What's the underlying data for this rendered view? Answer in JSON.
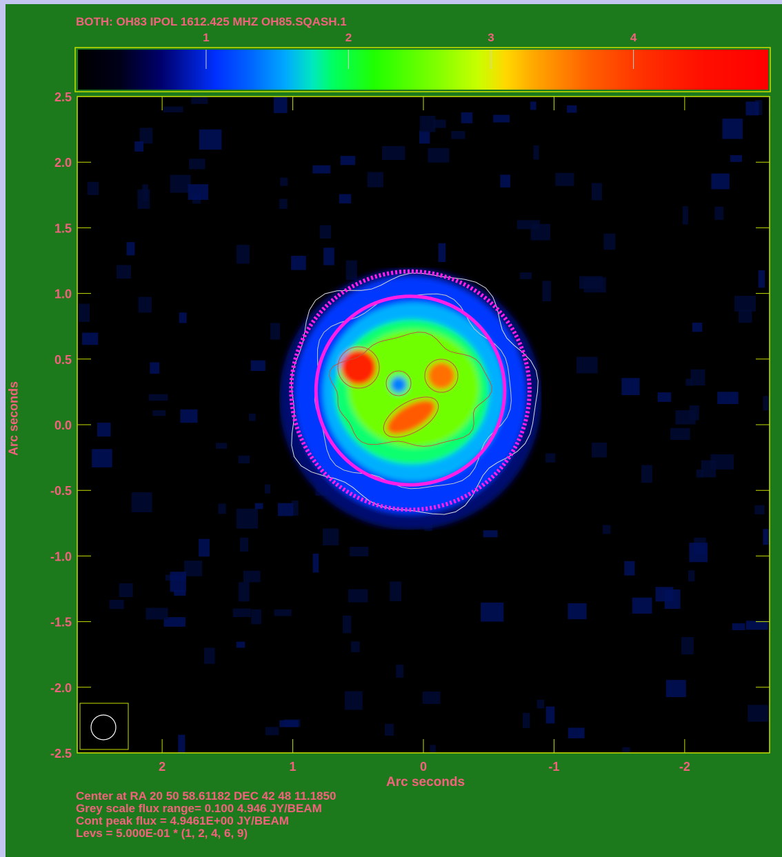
{
  "title": "BOTH: OH83  IPOL  1612.425 MHZ  OH85.SQASH.1",
  "footer": {
    "center": "Center at RA 20 50 58.61182  DEC 42 48 11.1850",
    "grey_range": "Grey scale flux range= 0.100 4.946 JY/BEAM",
    "peak": "Cont peak flux =  4.9461E+00 JY/BEAM",
    "levs": "Levs = 5.000E-01 * (1, 2, 4, 6, 9)"
  },
  "colors": {
    "background": "#1c7a1c",
    "label": "#f2627c",
    "axis": "#c8e000",
    "contour": "#dcdcdc",
    "circle": "#ff1ee8"
  },
  "chart_data": {
    "type": "heatmap",
    "xlabel": "Arc seconds",
    "ylabel": "Arc seconds",
    "x_ticks": [
      "2",
      "1",
      "0",
      "-1",
      "-2"
    ],
    "y_ticks": [
      "2.5",
      "2.0",
      "1.5",
      "1.0",
      "0.5",
      "0.0",
      "-0.5",
      "-1.0",
      "-1.5",
      "-2.0",
      "-2.5"
    ],
    "xlim": [
      2.65,
      -2.65
    ],
    "ylim": [
      -2.5,
      2.5
    ],
    "colorbar": {
      "ticks": [
        "1",
        "2",
        "3",
        "4"
      ],
      "range": [
        0.1,
        4.946
      ],
      "unit": "JY/BEAM"
    },
    "contour_levels": [
      0.5,
      1.0,
      2.0,
      3.0,
      4.5
    ],
    "peak_flux": 4.9461,
    "emission_center": [
      0.1,
      0.25
    ],
    "circles": [
      {
        "style": "solid",
        "center": [
          0.1,
          0.26
        ],
        "radius": 0.72
      },
      {
        "style": "dotted",
        "center": [
          0.1,
          0.26
        ],
        "radius": 0.91
      }
    ],
    "beam": {
      "major": 0.19,
      "minor": 0.19
    }
  }
}
